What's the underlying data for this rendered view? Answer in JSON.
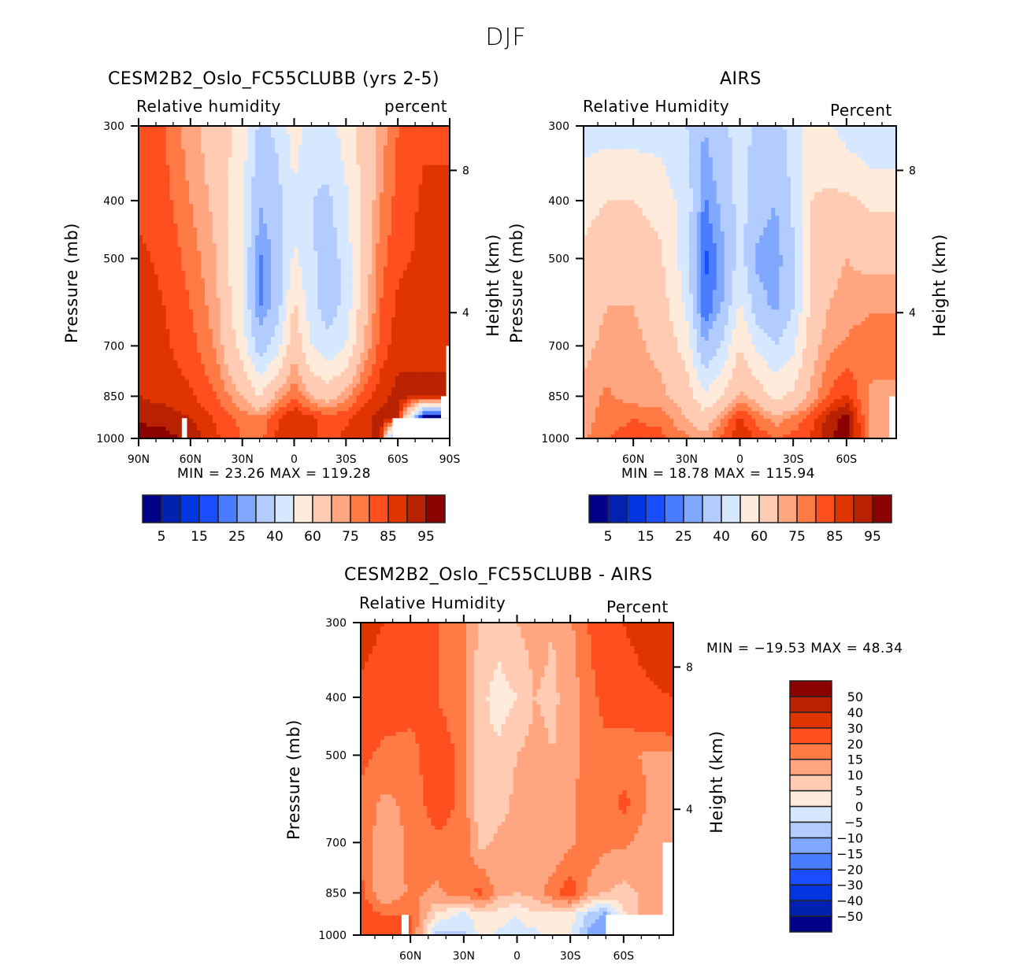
{
  "figure_title": "DJF",
  "chart_data": [
    {
      "id": "model",
      "type": "heatmap",
      "title": "CESM2B2_Oslo_FC55CLUBB (yrs 2-5)",
      "left_label": "Relative humidity",
      "right_label": "percent",
      "xlabel": "",
      "ylabel": "Pressure (mb)",
      "y2label": "Height (km)",
      "x_ticks": [
        "90N",
        "60N",
        "30N",
        "0",
        "30S",
        "60S",
        "90S"
      ],
      "x_tick_values": [
        90,
        60,
        30,
        0,
        -30,
        -60,
        -90
      ],
      "xlim": [
        90,
        -90
      ],
      "y_ticks": [
        "300",
        "400",
        "500",
        "700",
        "850",
        "1000"
      ],
      "y_tick_values": [
        300,
        400,
        500,
        700,
        850,
        1000
      ],
      "ylim": [
        300,
        1000
      ],
      "y2_ticks": [
        "8",
        "4"
      ],
      "min_label": "MIN =   23.26   MAX = 119.28",
      "min": 23.26,
      "max": 119.28,
      "levels": [
        5,
        10,
        15,
        20,
        25,
        30,
        40,
        50,
        60,
        70,
        75,
        80,
        85,
        90,
        95
      ],
      "level_labels": [
        "5",
        "15",
        "25",
        "40",
        "60",
        "75",
        "85",
        "95"
      ],
      "lat_grid": [
        90,
        75,
        60,
        45,
        30,
        20,
        10,
        0,
        -10,
        -20,
        -30,
        -40,
        -50,
        -60,
        -75,
        -90
      ],
      "p_grid": [
        300,
        400,
        500,
        600,
        700,
        850,
        925,
        1000
      ],
      "values": [
        [
          82,
          80,
          72,
          66,
          55,
          38,
          42,
          55,
          45,
          45,
          55,
          65,
          72,
          80,
          84,
          84
        ],
        [
          84,
          82,
          75,
          68,
          52,
          30,
          36,
          48,
          40,
          38,
          48,
          62,
          75,
          82,
          86,
          86
        ],
        [
          86,
          84,
          78,
          70,
          50,
          24,
          32,
          52,
          42,
          34,
          44,
          64,
          78,
          84,
          86,
          86
        ],
        [
          87,
          85,
          80,
          72,
          50,
          24,
          34,
          62,
          44,
          34,
          44,
          66,
          80,
          86,
          88,
          88
        ],
        [
          88,
          86,
          82,
          74,
          56,
          34,
          46,
          68,
          50,
          44,
          50,
          70,
          82,
          88,
          89,
          89
        ],
        [
          90,
          88,
          86,
          80,
          70,
          60,
          72,
          80,
          70,
          66,
          74,
          82,
          88,
          92,
          91,
          91
        ],
        [
          94,
          93,
          90,
          84,
          78,
          76,
          84,
          90,
          86,
          82,
          84,
          88,
          92,
          93,
          -1,
          -1
        ],
        [
          98,
          97,
          94,
          86,
          80,
          78,
          86,
          90,
          86,
          84,
          86,
          88,
          92,
          -1,
          -1,
          -1
        ]
      ],
      "missing_regions": [
        "60N bottom strip",
        "60S-90S below 925 mb"
      ]
    },
    {
      "id": "obs",
      "type": "heatmap",
      "title": "AIRS",
      "left_label": "Relative Humidity",
      "right_label": "Percent",
      "ylabel": "Pressure (mb)",
      "y2label": "Height (km)",
      "x_ticks": [
        "60N",
        "30N",
        "0",
        "30S",
        "60S"
      ],
      "x_tick_values": [
        60,
        30,
        0,
        -30,
        -60
      ],
      "xlim": [
        88,
        -88
      ],
      "y_ticks": [
        "300",
        "400",
        "500",
        "700",
        "850",
        "1000"
      ],
      "y_tick_values": [
        300,
        400,
        500,
        700,
        850,
        1000
      ],
      "ylim": [
        300,
        1000
      ],
      "y2_ticks": [
        "8",
        "4"
      ],
      "min_label": "MIN =   18.78   MAX = 115.94",
      "min": 18.78,
      "max": 115.94,
      "levels": [
        5,
        10,
        15,
        20,
        25,
        30,
        40,
        50,
        60,
        70,
        75,
        80,
        85,
        90,
        95
      ],
      "level_labels": [
        "5",
        "15",
        "25",
        "40",
        "60",
        "75",
        "85",
        "95"
      ],
      "lat_grid": [
        88,
        75,
        60,
        45,
        30,
        20,
        10,
        0,
        -10,
        -20,
        -30,
        -40,
        -50,
        -60,
        -75,
        -88
      ],
      "p_grid": [
        300,
        400,
        500,
        600,
        700,
        850,
        925,
        1000
      ],
      "values": [
        [
          46,
          46,
          46,
          46,
          40,
          30,
          36,
          46,
          36,
          36,
          44,
          56,
          52,
          46,
          40,
          40
        ],
        [
          56,
          60,
          60,
          56,
          46,
          24,
          32,
          44,
          34,
          30,
          42,
          60,
          62,
          62,
          58,
          58
        ],
        [
          62,
          68,
          68,
          62,
          44,
          18,
          28,
          44,
          28,
          26,
          38,
          62,
          68,
          70,
          68,
          68
        ],
        [
          66,
          70,
          70,
          66,
          48,
          20,
          30,
          52,
          34,
          28,
          40,
          62,
          70,
          72,
          74,
          74
        ],
        [
          68,
          72,
          72,
          68,
          56,
          30,
          42,
          60,
          48,
          40,
          48,
          66,
          74,
          76,
          80,
          80
        ],
        [
          72,
          76,
          72,
          72,
          66,
          52,
          60,
          72,
          66,
          58,
          62,
          72,
          80,
          86,
          72,
          72
        ],
        [
          72,
          78,
          80,
          78,
          70,
          64,
          74,
          86,
          78,
          72,
          76,
          82,
          92,
          98,
          70,
          70
        ],
        [
          74,
          80,
          82,
          82,
          76,
          72,
          82,
          90,
          84,
          80,
          82,
          86,
          94,
          98,
          72,
          72
        ]
      ]
    },
    {
      "id": "diff",
      "type": "heatmap",
      "title": "CESM2B2_Oslo_FC55CLUBB - AIRS",
      "left_label": "Relative Humidity",
      "right_label": "Percent",
      "ylabel": "Pressure (mb)",
      "y2label": "Height (km)",
      "x_ticks": [
        "60N",
        "30N",
        "0",
        "30S",
        "60S"
      ],
      "x_tick_values": [
        60,
        30,
        0,
        -30,
        -60
      ],
      "xlim": [
        88,
        -88
      ],
      "y_ticks": [
        "300",
        "400",
        "500",
        "700",
        "850",
        "1000"
      ],
      "y_tick_values": [
        300,
        400,
        500,
        700,
        850,
        1000
      ],
      "ylim": [
        300,
        1000
      ],
      "y2_ticks": [
        "8",
        "4"
      ],
      "min_label": "MIN = −19.53   MAX =   48.34",
      "min": -19.53,
      "max": 48.34,
      "levels": [
        -50,
        -40,
        -30,
        -20,
        -15,
        -10,
        -5,
        0,
        5,
        10,
        15,
        20,
        30,
        40,
        50
      ],
      "level_labels": [
        "−50",
        "−40",
        "−30",
        "−20",
        "−15",
        "−10",
        "−5",
        "0",
        "5",
        "10",
        "15",
        "20",
        "30",
        "40",
        "50"
      ],
      "lat_grid": [
        88,
        75,
        60,
        45,
        30,
        20,
        10,
        0,
        -10,
        -20,
        -30,
        -40,
        -50,
        -60,
        -75,
        -88
      ],
      "p_grid": [
        300,
        400,
        500,
        600,
        700,
        850,
        925,
        1000
      ],
      "values": [
        [
          34,
          30,
          24,
          20,
          16,
          8,
          7,
          10,
          12,
          10,
          14,
          20,
          24,
          30,
          36,
          40
        ],
        [
          28,
          24,
          22,
          20,
          16,
          6,
          3,
          5,
          10,
          9,
          12,
          18,
          22,
          24,
          28,
          30
        ],
        [
          22,
          18,
          18,
          24,
          18,
          6,
          6,
          10,
          12,
          10,
          12,
          18,
          18,
          16,
          14,
          14
        ],
        [
          18,
          14,
          16,
          24,
          18,
          5,
          7,
          12,
          12,
          10,
          14,
          18,
          16,
          22,
          14,
          14
        ],
        [
          18,
          12,
          16,
          18,
          18,
          8,
          12,
          12,
          12,
          10,
          14,
          18,
          16,
          16,
          12,
          12
        ],
        [
          22,
          10,
          16,
          14,
          18,
          22,
          12,
          10,
          12,
          18,
          24,
          14,
          10,
          8,
          12,
          12
        ],
        [
          24,
          20,
          20,
          4,
          -2,
          4,
          2,
          0,
          4,
          4,
          2,
          -6,
          -12,
          4,
          14,
          14
        ],
        [
          26,
          24,
          22,
          -8,
          -6,
          2,
          -1,
          -2,
          -2,
          4,
          2,
          -12,
          -14,
          -1,
          -1,
          -1
        ]
      ]
    }
  ],
  "colorbar": {
    "colors": [
      "#00008b",
      "#0020b0",
      "#0035e0",
      "#1a4dff",
      "#4a7cff",
      "#80a8ff",
      "#b2ccff",
      "#d6e8ff",
      "#ffebdb",
      "#ffcbb2",
      "#ffa680",
      "#ff7a45",
      "#ff4f1f",
      "#e03500",
      "#b82200",
      "#8b0000"
    ],
    "missing": "#ffffff"
  }
}
